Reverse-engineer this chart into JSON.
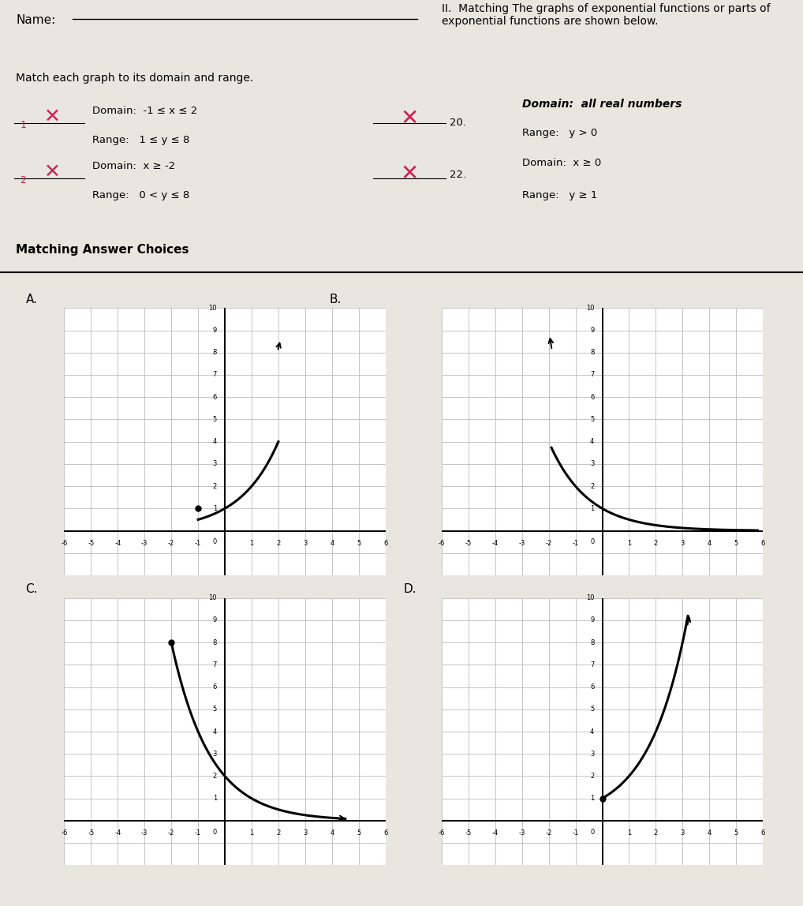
{
  "bg_color": "#e8e6df",
  "graph_bg": "#ffffff",
  "grid_color": "#bbbbbb",
  "curve_color": "#000000",
  "answer_color": "#cc2255",
  "text_color": "#111111",
  "name_label": "Name:",
  "section_label": "II.",
  "section_bold": "Matching",
  "section_rest": " The graphs of exponential functions or parts of exponential functions are shown below.",
  "subtitle": "Match each graph to its domain and range.",
  "matching_title": "Matching Answer Choices",
  "prob19_num": "1",
  "prob19_domain": "Domain:  -1 ≤ x ≤ 2",
  "prob19_range": "Range:   1 ≤ y ≤ 8",
  "prob21_num": "2",
  "prob21_domain": "Domain:  x ≥ -2",
  "prob21_range": "Range:   0 < y ≤ 8",
  "prob20_num": "20.",
  "prob20_domain": "Domain:  all real numbers",
  "prob20_range": "Range:   y > 0",
  "prob22_num": "22.",
  "prob22_domain": "Domain:  x ≥ 0",
  "prob22_range": "Range:   y ≥ 1",
  "graph_xlim": [
    -6,
    6
  ],
  "graph_ylim": [
    -2,
    10
  ],
  "graph_A_label": "A.",
  "graph_B_label": "B.",
  "graph_C_label": "C.",
  "graph_D_label": "D."
}
